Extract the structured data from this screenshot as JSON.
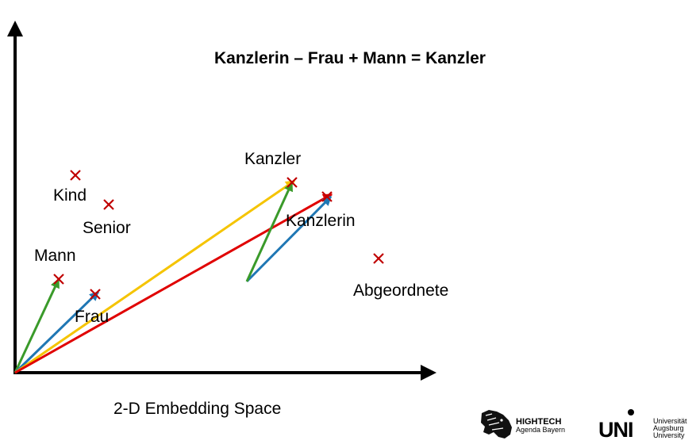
{
  "title": "Kanzlerin – Frau + Mann = Kanzler",
  "axis_caption": "2-D Embedding Space",
  "words": {
    "kind": "Kind",
    "senior": "Senior",
    "mann": "Mann",
    "frau": "Frau",
    "kanzler": "Kanzler",
    "kanzlerin": "Kanzlerin",
    "abgeordnete": "Abgeordnete"
  },
  "vector_colors": {
    "green": "#3a9a2a",
    "blue": "#1f77b4",
    "yellow": "#f5c400",
    "red": "#e00000",
    "marker": "#c00000"
  },
  "logos": {
    "hightech_line1": "HIGHTECH",
    "hightech_line2": "Agenda Bayern",
    "uni_mark": "UNI",
    "uni_line1": "Universität",
    "uni_line2": "Augsburg",
    "uni_line3": "University"
  }
}
